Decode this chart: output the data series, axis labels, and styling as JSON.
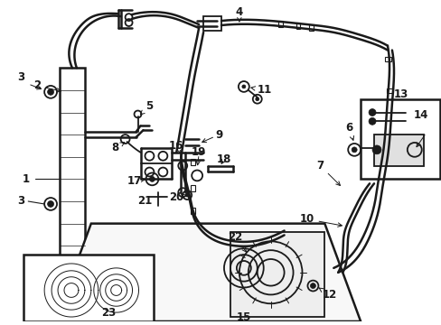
{
  "bg_color": "#ffffff",
  "line_color": "#1a1a1a",
  "figsize": [
    4.89,
    3.6
  ],
  "dpi": 100,
  "lw_main": 1.3,
  "lw_thin": 0.8,
  "lw_thick": 1.8
}
